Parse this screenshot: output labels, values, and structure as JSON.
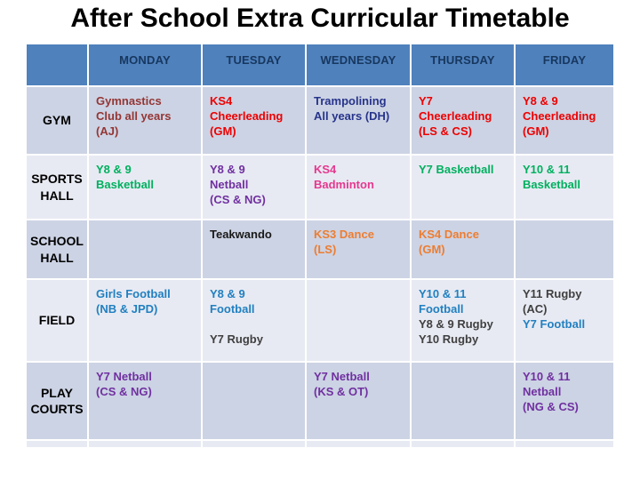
{
  "slide": {
    "title": "After School Extra Curricular Timetable"
  },
  "colors": {
    "header_bg": "#4f81bd",
    "header_text": "#17375e",
    "row_band_dark": "#ccd3e4",
    "row_band_light": "#e8eaf3",
    "grid_line": "#ffffff",
    "title_text": "#000000",
    "row_header_text": "#000000"
  },
  "ink": {
    "darkred": "#943634",
    "red": "#ee0000",
    "navy": "#27348b",
    "green": "#00b05f",
    "purple": "#7030a0",
    "pink": "#e5388f",
    "orange": "#ed7d31",
    "blue": "#2180c0",
    "black": "#1a1a1a",
    "gray": "#404040"
  },
  "timetable": {
    "day_headers": [
      "MONDAY",
      "TUESDAY",
      "WEDNESDAY",
      "THURSDAY",
      "FRIDAY"
    ],
    "rows": [
      {
        "location": "GYM",
        "band": "dark",
        "cells": [
          [
            {
              "text": "Gymnastics\nClub all years\n(AJ)",
              "color": "darkred"
            }
          ],
          [
            {
              "text": "KS4\nCheerleading\n(GM)",
              "color": "red"
            }
          ],
          [
            {
              "text": "Trampolining\nAll years (DH)",
              "color": "navy"
            }
          ],
          [
            {
              "text": "Y7\nCheerleading\n(LS & CS)",
              "color": "red"
            }
          ],
          [
            {
              "text": "Y8 & 9\nCheerleading\n(GM)",
              "color": "red"
            }
          ]
        ]
      },
      {
        "location": "SPORTS\nHALL",
        "band": "light",
        "cells": [
          [
            {
              "text": "Y8 & 9\nBasketball",
              "color": "green"
            }
          ],
          [
            {
              "text": "Y8 & 9\nNetball\n(CS & NG)",
              "color": "purple"
            }
          ],
          [
            {
              "text": "KS4\nBadminton",
              "color": "pink"
            }
          ],
          [
            {
              "text": "Y7 Basketball",
              "color": "green"
            }
          ],
          [
            {
              "text": "Y10 & 11\nBasketball",
              "color": "green"
            }
          ]
        ]
      },
      {
        "location": "SCHOOL\nHALL",
        "band": "dark",
        "cells": [
          [],
          [
            {
              "text": "Teakwando",
              "color": "black"
            }
          ],
          [
            {
              "text": "KS3 Dance\n(LS)",
              "color": "orange"
            }
          ],
          [
            {
              "text": "KS4 Dance\n(GM)",
              "color": "orange"
            }
          ],
          []
        ]
      },
      {
        "location": "FIELD",
        "band": "light",
        "cells": [
          [
            {
              "text": "Girls Football\n(NB & JPD)",
              "color": "blue"
            }
          ],
          [
            {
              "text": "Y8 & 9\nFootball",
              "color": "blue"
            },
            {
              "text": "",
              "color": "gray"
            },
            {
              "text": "Y7 Rugby",
              "color": "gray"
            }
          ],
          [],
          [
            {
              "text": "Y10 & 11\nFootball",
              "color": "blue"
            },
            {
              "text": "Y8 & 9 Rugby",
              "color": "gray"
            },
            {
              "text": "Y10 Rugby",
              "color": "gray"
            }
          ],
          [
            {
              "text": "Y11 Rugby\n(AC)",
              "color": "gray"
            },
            {
              "text": "Y7 Football",
              "color": "blue"
            }
          ]
        ]
      },
      {
        "location": "PLAY\nCOURTS",
        "band": "dark",
        "cells": [
          [
            {
              "text": "Y7 Netball\n(CS & NG)",
              "color": "purple"
            }
          ],
          [],
          [
            {
              "text": "Y7 Netball\n(KS & OT)",
              "color": "purple"
            }
          ],
          [],
          [
            {
              "text": "Y10 & 11\nNetball\n(NG & CS)",
              "color": "purple"
            }
          ]
        ]
      }
    ]
  }
}
